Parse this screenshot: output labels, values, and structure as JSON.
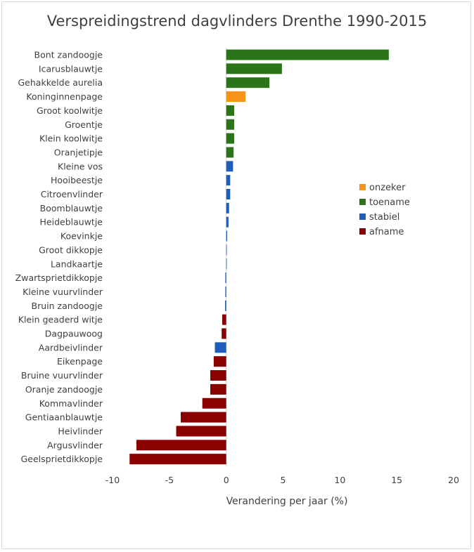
{
  "chart_data": {
    "type": "bar",
    "orientation": "horizontal",
    "title": "Verspreidingstrend dagvlinders Drenthe 1990-2015",
    "xlabel": "Verandering per jaar (%)",
    "ylabel": "",
    "xlim": [
      -10,
      20
    ],
    "xticks": [
      -10,
      -5,
      0,
      5,
      10,
      15,
      20
    ],
    "grid": false,
    "legend_position": "right",
    "legend": [
      {
        "key": "onzeker",
        "label": "onzeker",
        "color": "#f79318"
      },
      {
        "key": "toename",
        "label": "toename",
        "color": "#2b7419"
      },
      {
        "key": "stabiel",
        "label": "stabiel",
        "color": "#1f5db8"
      },
      {
        "key": "afname",
        "label": "afname",
        "color": "#8b0000"
      }
    ],
    "categories": [
      "Bont zandoogje",
      "Icarusblauwtje",
      "Gehakkelde aurelia",
      "Koninginnenpage",
      "Groot koolwitje",
      "Groentje",
      "Klein koolwitje",
      "Oranjetipje",
      "Kleine vos",
      "Hooibeestje",
      "Citroenvlinder",
      "Boomblauwtje",
      "Heideblauwtje",
      "Koevinkje",
      "Groot dikkopje",
      "Landkaartje",
      "Zwartsprietdikkopje",
      "Kleine vuurvlinder",
      "Bruin zandoogje",
      "Klein geaderd witje",
      "Dagpauwoog",
      "Aardbeivlinder",
      "Eikenpage",
      "Bruine vuurvlinder",
      "Oranje zandoogje",
      "Kommavlinder",
      "Gentiaanblauwtje",
      "Heivlinder",
      "Argusvlinder",
      "Geelsprietdikkopje"
    ],
    "values": [
      14.3,
      4.9,
      3.8,
      1.7,
      0.7,
      0.7,
      0.7,
      0.65,
      0.6,
      0.35,
      0.35,
      0.25,
      0.2,
      0.08,
      0.05,
      0.0,
      -0.08,
      -0.08,
      -0.1,
      -0.35,
      -0.4,
      -1.0,
      -1.1,
      -1.4,
      -1.4,
      -2.1,
      -4.0,
      -4.4,
      -7.9,
      -8.5
    ],
    "status": [
      "toename",
      "toename",
      "toename",
      "onzeker",
      "toename",
      "toename",
      "toename",
      "toename",
      "stabiel",
      "stabiel",
      "stabiel",
      "stabiel",
      "stabiel",
      "stabiel",
      "stabiel",
      "stabiel",
      "stabiel",
      "stabiel",
      "stabiel",
      "afname",
      "afname",
      "stabiel",
      "afname",
      "afname",
      "afname",
      "afname",
      "afname",
      "afname",
      "afname",
      "afname"
    ]
  }
}
